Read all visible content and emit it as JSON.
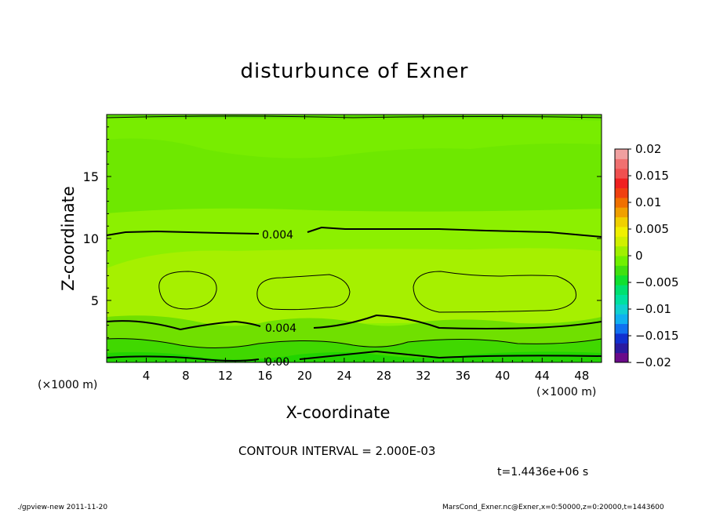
{
  "chart_data": {
    "type": "heatmap",
    "subtype": "filled-contour",
    "title": "disturbunce of Exner",
    "xlabel": "X-coordinate",
    "ylabel": "Z-coordinate",
    "x_unit_left": "(×1000 m)",
    "x_unit_right": "(×1000 m)",
    "xlim": [
      0,
      50
    ],
    "ylim": [
      0,
      20
    ],
    "xticks": [
      4,
      8,
      12,
      16,
      20,
      24,
      28,
      32,
      36,
      40,
      44,
      48
    ],
    "yticks": [
      5,
      10,
      15
    ],
    "colorbar": {
      "levels": [
        -0.02,
        -0.015,
        -0.01,
        -0.005,
        0,
        0.005,
        0.01,
        0.015,
        0.02
      ],
      "labels": [
        "0.02",
        "0.015",
        "0.01",
        "0.005",
        "0",
        "−0.005",
        "−0.01",
        "−0.015",
        "−0.02"
      ],
      "colors": [
        "#6a0a8a",
        "#2a1aa0",
        "#1030d0",
        "#1070f0",
        "#10b0f0",
        "#10d0d0",
        "#00e0a0",
        "#00e070",
        "#10e030",
        "#40e010",
        "#70f000",
        "#a0f000",
        "#d0f000",
        "#f0f000",
        "#f0d000",
        "#f0a000",
        "#f07000",
        "#f04010",
        "#f02020",
        "#f05050",
        "#f07070",
        "#f0a0a0"
      ]
    },
    "contour_labels": [
      "0.004",
      "0.004",
      "0.00"
    ],
    "contour_interval": "CONTOUR INTERVAL = 2.000E-03"
  },
  "time_label": "t=1.4436e+06 s",
  "footer": {
    "left": "./gpview-new   2011-11-20",
    "right": "MarsCond_Exner.nc@Exner,x=0:50000,z=0:20000,t=1443600"
  }
}
